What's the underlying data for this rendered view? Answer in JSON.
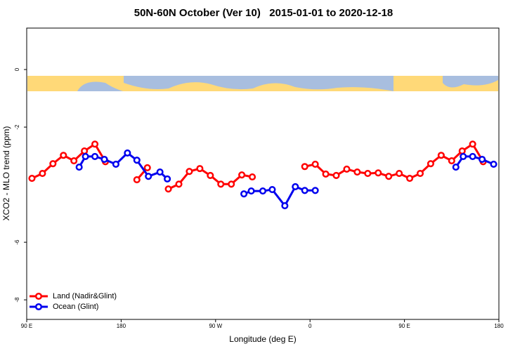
{
  "chart_data": {
    "type": "line",
    "title": "50N-60N October (Ver 10)   2015-01-01 to 2020-12-18",
    "x_label": "Longitude (deg E)",
    "y_label": "XCO2 - MLO trend (ppm)",
    "xlim": [
      90,
      540
    ],
    "xticks": [
      {
        "value": 90,
        "label": "90 E"
      },
      {
        "value": 180,
        "label": "180"
      },
      {
        "value": 270,
        "label": "90 W"
      },
      {
        "value": 360,
        "label": "0"
      },
      {
        "value": 450,
        "label": "90 E"
      },
      {
        "value": 540,
        "label": "180"
      }
    ],
    "ylim": [
      -8.68,
      1.44
    ],
    "yticks": [
      -8,
      -6,
      -2,
      0
    ],
    "legend": "bottom-left",
    "series": [
      {
        "name": "Land (Nadir&Glint)",
        "color": "#ff0000",
        "x": [
          95,
          105,
          115,
          125,
          135,
          145,
          155,
          165,
          175,
          195,
          205,
          215,
          225,
          235,
          245,
          255,
          265,
          275,
          285,
          295,
          305,
          315,
          355,
          365,
          375,
          385,
          395,
          405,
          415,
          425,
          435,
          445,
          455,
          465,
          475,
          485,
          495,
          505,
          515,
          525
        ],
        "values": [
          -3.78,
          -3.61,
          -3.27,
          -2.98,
          -3.17,
          -2.83,
          -2.59,
          -3.2,
          null,
          -3.83,
          -3.41,
          null,
          -4.15,
          -3.98,
          -3.54,
          -3.44,
          -3.68,
          -3.98,
          -3.98,
          -3.66,
          -3.73,
          null,
          -3.37,
          -3.29,
          -3.63,
          -3.68,
          -3.46,
          -3.56,
          -3.61,
          -3.59,
          -3.71,
          -3.61,
          -3.78,
          -3.61,
          -3.27,
          -2.98,
          -3.17,
          -2.83,
          -2.59,
          -3.2
        ]
      },
      {
        "name": "Ocean (Glint)",
        "color": "#0000ee",
        "x": [
          140,
          146,
          155,
          164,
          175,
          186,
          195,
          206,
          217,
          224,
          260,
          297,
          304,
          315,
          324,
          336,
          346,
          355,
          365,
          430,
          499,
          506,
          515,
          524,
          535
        ],
        "values": [
          -3.39,
          -3.02,
          -3.02,
          -3.12,
          -3.29,
          -2.9,
          -3.15,
          -3.71,
          -3.56,
          -3.8,
          null,
          -4.32,
          -4.22,
          -4.22,
          -4.17,
          -4.73,
          -4.07,
          -4.2,
          -4.2,
          null,
          -3.39,
          -3.02,
          -3.02,
          -3.12,
          -3.29
        ]
      }
    ]
  }
}
